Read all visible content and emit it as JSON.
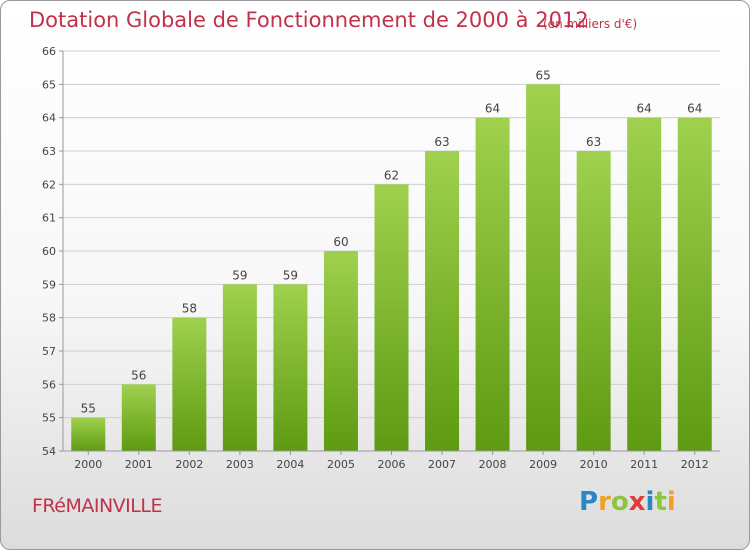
{
  "header": {
    "title": "Dotation Globale de Fonctionnement de 2000 à 2012",
    "subtitle": "(en milliers d'€)"
  },
  "footer": {
    "commune": "FRéMAINVILLE",
    "logo_letters": [
      "P",
      "r",
      "o",
      "x",
      "i",
      "t",
      "i"
    ],
    "logo_colors": [
      "#2b86c6",
      "#f0a12a",
      "#8cc63e",
      "#e23b3b",
      "#2b86c6",
      "#8cc63e",
      "#f0a12a"
    ]
  },
  "colors": {
    "bar_top": "#9fd14e",
    "bar_bottom": "#5e9a12",
    "text": "#c2314a",
    "grid": "#cfcfcf"
  },
  "chart_data": {
    "type": "bar",
    "title": "Dotation Globale de Fonctionnement de 2000 à 2012",
    "subtitle": "(en milliers d'€)",
    "categories": [
      "2000",
      "2001",
      "2002",
      "2003",
      "2004",
      "2005",
      "2006",
      "2007",
      "2008",
      "2009",
      "2010",
      "2011",
      "2012"
    ],
    "values": [
      55,
      56,
      58,
      59,
      59,
      60,
      62,
      63,
      64,
      65,
      63,
      64,
      64
    ],
    "yticks": [
      54,
      55,
      56,
      57,
      58,
      59,
      60,
      61,
      62,
      63,
      64,
      65,
      66
    ],
    "ylim": [
      54,
      66
    ],
    "grid": true,
    "data_labels": true
  }
}
